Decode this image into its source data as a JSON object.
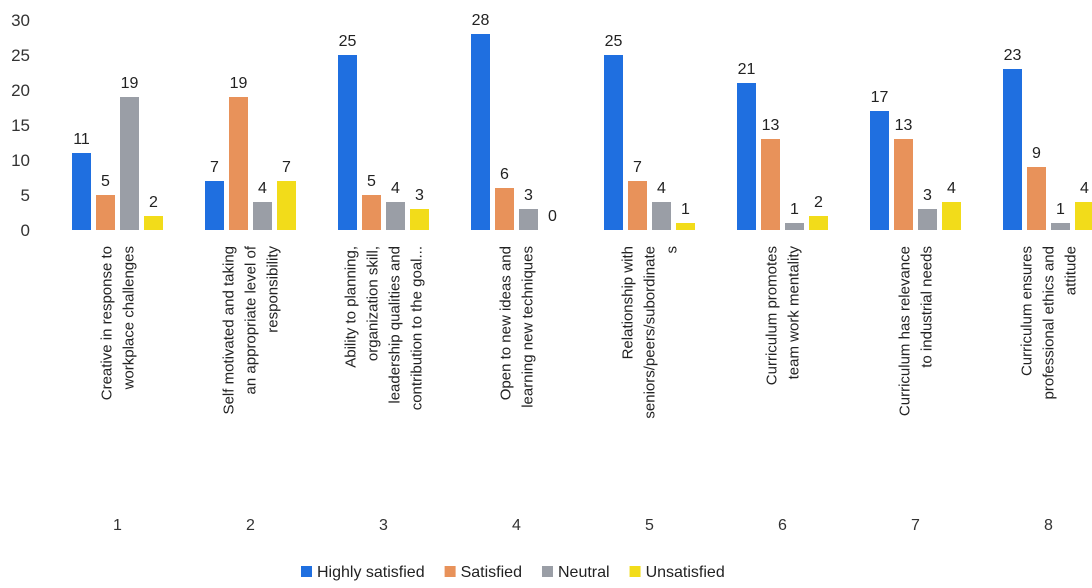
{
  "chart_data": {
    "type": "bar",
    "ylim": [
      0,
      30
    ],
    "yticks": [
      0,
      5,
      10,
      15,
      20,
      25,
      30
    ],
    "grid": false,
    "legend_position": "bottom",
    "categories": [
      {
        "number": "1",
        "lines": [
          "Creative in response to",
          "workplace challenges"
        ]
      },
      {
        "number": "2",
        "lines": [
          "Self motivated and taking",
          "an appropriate level of",
          "responsibility"
        ]
      },
      {
        "number": "3",
        "lines": [
          "Ability to planning,",
          "organization skill,",
          "leadership qualities and",
          "contribution to the goal..."
        ]
      },
      {
        "number": "4",
        "lines": [
          "Open to new ideas and",
          "learning new techniques"
        ]
      },
      {
        "number": "5",
        "lines": [
          "Relationship with",
          "seniors/peers/subordinate",
          "s"
        ]
      },
      {
        "number": "6",
        "lines": [
          "Curriculum promotes",
          "team work mentality"
        ]
      },
      {
        "number": "7",
        "lines": [
          "Curriculum has relevance",
          "to industrial needs"
        ]
      },
      {
        "number": "8",
        "lines": [
          "Curriculum ensures",
          "professional ethics and",
          "attitude"
        ]
      }
    ],
    "series": [
      {
        "name": "Highly satisfied",
        "color": "#1f6fe0",
        "values": [
          11,
          7,
          25,
          28,
          25,
          21,
          17,
          23
        ]
      },
      {
        "name": "Satisfied",
        "color": "#e8925a",
        "values": [
          5,
          19,
          5,
          6,
          7,
          13,
          13,
          9
        ]
      },
      {
        "name": "Neutral",
        "color": "#9a9ea6",
        "values": [
          19,
          4,
          4,
          3,
          4,
          1,
          3,
          1
        ]
      },
      {
        "name": "Unsatisfied",
        "color": "#f2dc1a",
        "values": [
          2,
          7,
          3,
          0,
          1,
          2,
          4,
          4
        ]
      }
    ]
  }
}
